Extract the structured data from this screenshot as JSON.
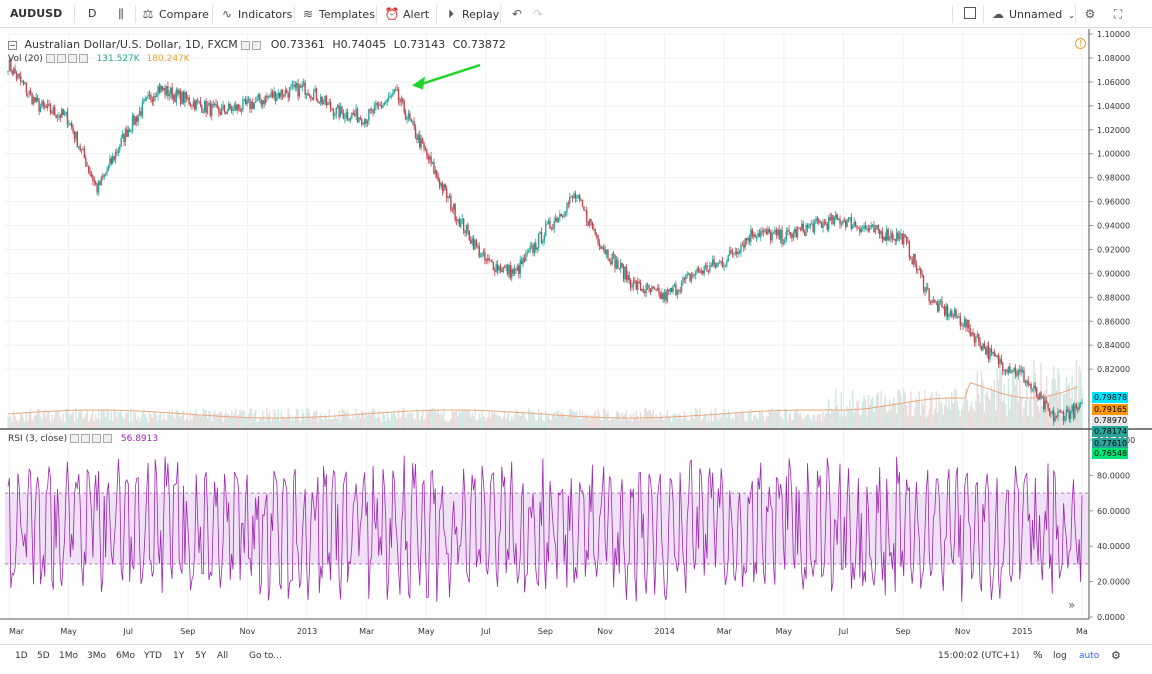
{
  "toolbar": {
    "symbol": "AUDUSD",
    "interval": "D",
    "compare": "Compare",
    "indicators": "Indicators",
    "templates": "Templates",
    "alert": "Alert",
    "replay": "Replay",
    "layout_name": "Unnamed"
  },
  "main_legend": {
    "title": "Australian Dollar/U.S. Dollar, 1D, FXCM",
    "open": "O0.73361",
    "high": "H0.74045",
    "low": "L0.73143",
    "close": "C0.73872",
    "colors": {
      "up": "#26a69a",
      "down": "#c2444f"
    }
  },
  "volume_legend": {
    "name": "Vol (20)",
    "value1": "131.527K",
    "value2": "180.247K",
    "value1_color": "#26a69a",
    "value2_color": "#f0a030"
  },
  "rsi_legend": {
    "name": "RSI (3, close)",
    "value": "56.8913",
    "color": "#9c27b0"
  },
  "price_axis": [
    "1.10000",
    "1.08000",
    "1.06000",
    "1.04000",
    "1.02000",
    "1.00000",
    "0.98000",
    "0.96000",
    "0.94000",
    "0.92000",
    "0.90000",
    "0.88000",
    "0.86000",
    "0.84000",
    "0.82000"
  ],
  "price_badges": [
    {
      "text": "0.79878",
      "color": "#00e5ff"
    },
    {
      "text": "0.79165",
      "color": "#ff9800"
    },
    {
      "text": "0.78970",
      "color": "#e8e8e8"
    },
    {
      "text": "0.78174",
      "color": "#26a69a"
    },
    {
      "text": "0.77610",
      "color": "#26a69a"
    },
    {
      "text": "0.76548",
      "color": "#00e676"
    }
  ],
  "rsi_axis": [
    "100.0000",
    "80.0000",
    "60.0000",
    "40.0000",
    "20.0000",
    "0.0000"
  ],
  "time_axis": [
    "Mar",
    "May",
    "Jul",
    "Sep",
    "Nov",
    "2013",
    "Mar",
    "May",
    "Jul",
    "Sep",
    "Nov",
    "2014",
    "Mar",
    "May",
    "Jul",
    "Sep",
    "Nov",
    "2015",
    "Ma"
  ],
  "bottom_bar": {
    "ranges": [
      "1D",
      "5D",
      "1Mo",
      "3Mo",
      "6Mo",
      "YTD",
      "1Y",
      "5Y",
      "All"
    ],
    "goto": "Go to...",
    "clock": "15:00:02 (UTC+1)",
    "percent": "%",
    "log": "log",
    "auto": "auto"
  },
  "chart_data": {
    "type": "candlestick",
    "symbol": "AUDUSD",
    "x_axis": "date (daily)",
    "y_range": [
      0.77,
      1.1
    ],
    "close_path": [
      {
        "x": "Mar 2012",
        "y": 1.075
      },
      {
        "x": "Apr 2012",
        "y": 1.04
      },
      {
        "x": "May 2012",
        "y": 1.03
      },
      {
        "x": "Jun 2012",
        "y": 0.97
      },
      {
        "x": "Jul 2012",
        "y": 1.02
      },
      {
        "x": "Aug 2012",
        "y": 1.055
      },
      {
        "x": "Sep 2012",
        "y": 1.045
      },
      {
        "x": "Oct 2012",
        "y": 1.035
      },
      {
        "x": "Nov 2012",
        "y": 1.04
      },
      {
        "x": "Dec 2012",
        "y": 1.05
      },
      {
        "x": "Jan 2013",
        "y": 1.055
      },
      {
        "x": "Feb 2013",
        "y": 1.035
      },
      {
        "x": "Mar 2013",
        "y": 1.03
      },
      {
        "x": "Apr 2013",
        "y": 1.05
      },
      {
        "x": "May 2013",
        "y": 1.0
      },
      {
        "x": "Jun 2013",
        "y": 0.95
      },
      {
        "x": "Jul 2013",
        "y": 0.91
      },
      {
        "x": "Aug 2013",
        "y": 0.9
      },
      {
        "x": "Sep 2013",
        "y": 0.935
      },
      {
        "x": "Oct 2013",
        "y": 0.965
      },
      {
        "x": "Nov 2013",
        "y": 0.92
      },
      {
        "x": "Dec 2013",
        "y": 0.89
      },
      {
        "x": "Jan 2014",
        "y": 0.88
      },
      {
        "x": "Feb 2014",
        "y": 0.9
      },
      {
        "x": "Mar 2014",
        "y": 0.91
      },
      {
        "x": "Apr 2014",
        "y": 0.935
      },
      {
        "x": "May 2014",
        "y": 0.93
      },
      {
        "x": "Jun 2014",
        "y": 0.94
      },
      {
        "x": "Jul 2014",
        "y": 0.945
      },
      {
        "x": "Aug 2014",
        "y": 0.935
      },
      {
        "x": "Sep 2014",
        "y": 0.93
      },
      {
        "x": "Oct 2014",
        "y": 0.875
      },
      {
        "x": "Nov 2014",
        "y": 0.86
      },
      {
        "x": "Dec 2014",
        "y": 0.83
      },
      {
        "x": "Jan 2015",
        "y": 0.815
      },
      {
        "x": "Feb 2015",
        "y": 0.78
      },
      {
        "x": "Mar 2015",
        "y": 0.787
      }
    ],
    "rsi_band": [
      30,
      70
    ],
    "rsi_range": [
      0,
      100
    ],
    "annotation": "green arrow pointing at the April 2013 high"
  }
}
